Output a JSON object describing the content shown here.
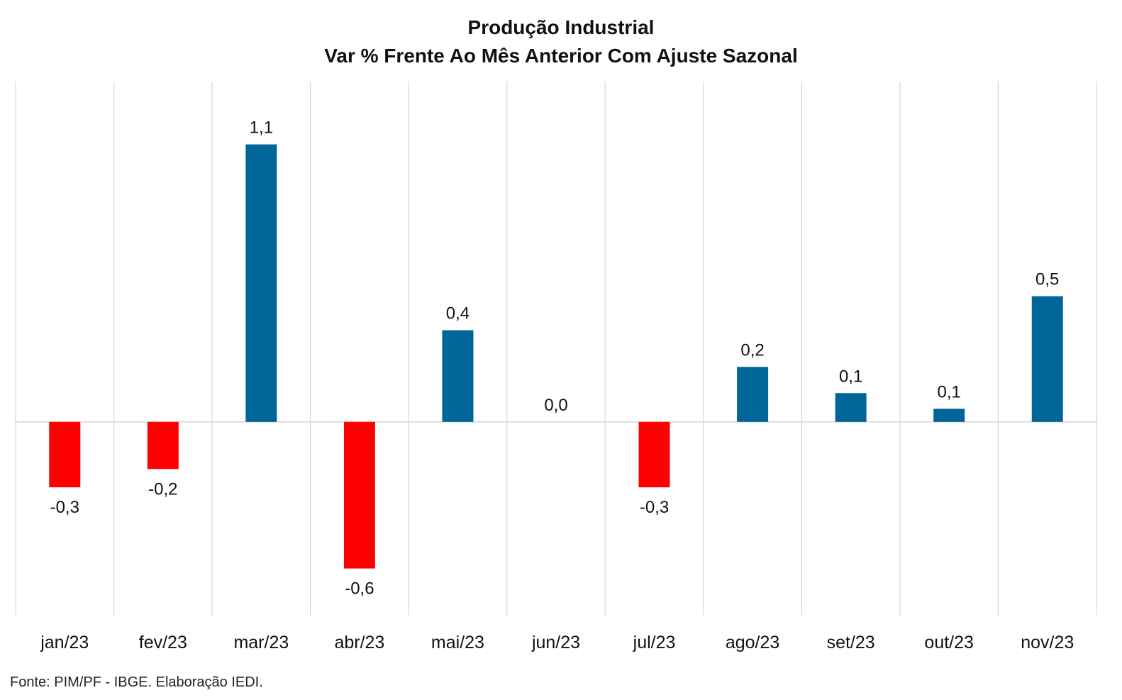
{
  "chart_data": {
    "type": "bar",
    "title": "Produção Industrial",
    "subtitle": "Var % Frente Ao Mês Anterior Com Ajuste Sazonal",
    "categories": [
      "jan/23",
      "fev/23",
      "mar/23",
      "abr/23",
      "mai/23",
      "jun/23",
      "jul/23",
      "ago/23",
      "set/23",
      "out/23",
      "nov/23"
    ],
    "values": [
      -0.25,
      -0.18,
      1.06,
      -0.56,
      0.35,
      0.0,
      -0.25,
      0.21,
      0.11,
      0.05,
      0.48
    ],
    "data_labels": [
      "-0,3",
      "-0,2",
      "1,1",
      "-0,6",
      "0,4",
      "0,0",
      "-0,3",
      "0,2",
      "0,1",
      "0,1",
      "0,5"
    ],
    "ylim": [
      -0.74,
      1.3
    ],
    "grid": "vertical",
    "legend": "none",
    "colors": {
      "positive": "#006699",
      "negative": "#FF0000",
      "grid": "#d9d9d9",
      "axis": "#d9d9d9"
    }
  },
  "source_note": "Fonte: PIM/PF - IBGE. Elaboração IEDI."
}
